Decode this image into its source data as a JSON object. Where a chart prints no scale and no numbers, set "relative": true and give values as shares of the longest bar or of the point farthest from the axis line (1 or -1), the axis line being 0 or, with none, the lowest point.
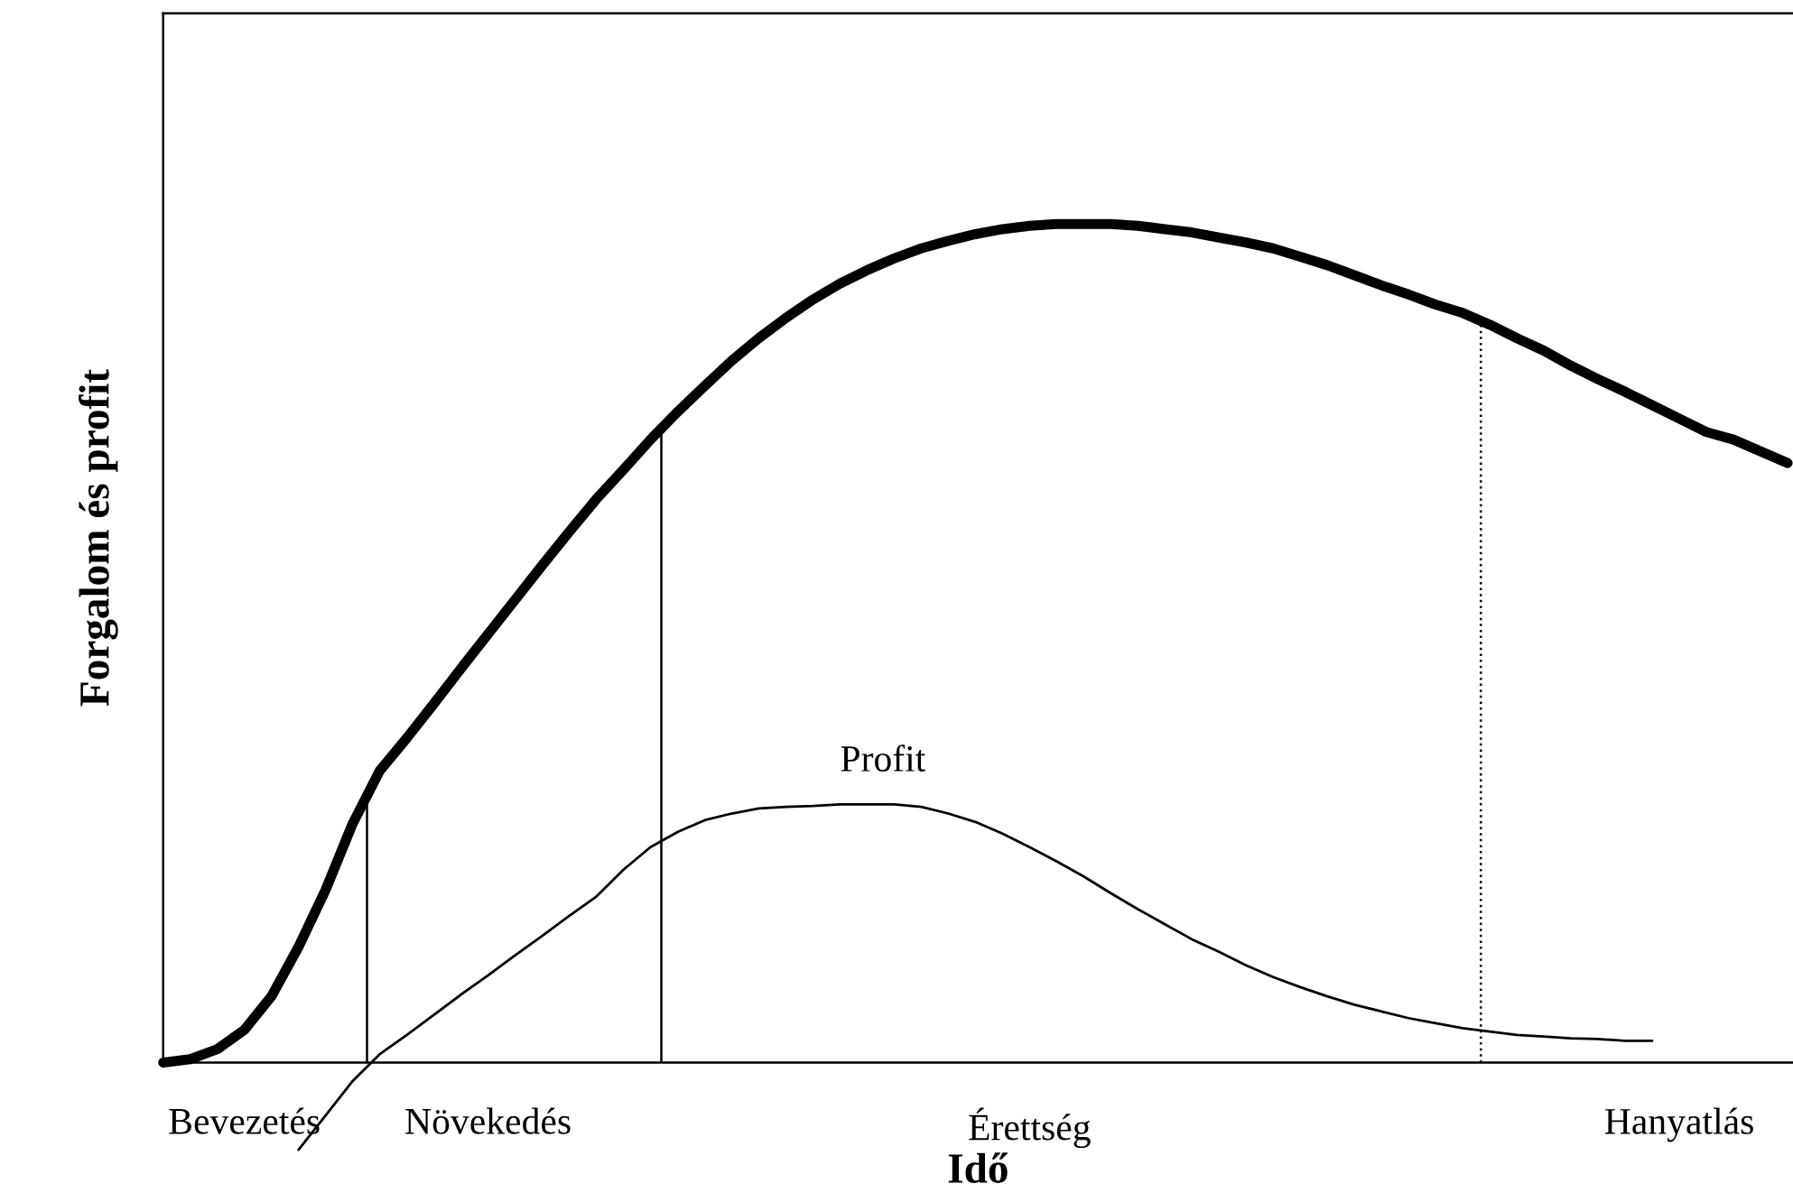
{
  "chart_data": {
    "type": "line",
    "relative": true,
    "xlabel": "Idő",
    "ylabel": "Forgalom és profit",
    "categories": [
      null,
      null,
      null,
      "Bevezetés",
      null,
      null,
      null,
      null,
      null,
      null,
      null,
      null,
      "Növekedés",
      null,
      null,
      null,
      null,
      null,
      null,
      null,
      null,
      null,
      null,
      null,
      null,
      null,
      null,
      null,
      null,
      null,
      null,
      null,
      "Érettség",
      null,
      null,
      null,
      null,
      null,
      null,
      null,
      null,
      null,
      null,
      null,
      null,
      null,
      null,
      null,
      null,
      null,
      null,
      null,
      null,
      null,
      null,
      null,
      "Hanyatlás",
      null,
      null,
      null,
      null
    ],
    "series": [
      {
        "color": "#000000",
        "values": [
          0,
          0.004,
          0.016,
          0.039,
          0.079,
          0.138,
          0.206,
          0.285,
          0.348,
          0.387,
          0.428,
          0.47,
          0.511,
          0.552,
          0.593,
          0.633,
          0.672,
          0.707,
          0.743,
          0.776,
          0.807,
          0.837,
          0.864,
          0.888,
          0.91,
          0.929,
          0.945,
          0.959,
          0.971,
          0.98,
          0.988,
          0.994,
          0.998,
          1,
          1,
          1,
          0.998,
          0.994,
          0.99,
          0.984,
          0.978,
          0.971,
          0.961,
          0.951,
          0.939,
          0.927,
          0.916,
          0.904,
          0.894,
          0.88,
          0.864,
          0.849,
          0.831,
          0.815,
          0.8,
          0.784,
          0.768,
          0.752,
          0.743,
          0.729,
          0.715
        ]
      },
      {
        "color": "#000000",
        "values": [
          null,
          null,
          null,
          null,
          null,
          -0.104,
          -0.063,
          -0.022,
          0.01,
          0.033,
          0.057,
          0.081,
          0.104,
          0.128,
          0.151,
          0.175,
          0.198,
          0.23,
          0.257,
          0.275,
          0.289,
          0.297,
          0.303,
          0.305,
          0.306,
          0.308,
          0.308,
          0.308,
          0.305,
          0.297,
          0.287,
          0.273,
          0.257,
          0.24,
          0.222,
          0.202,
          0.183,
          0.165,
          0.147,
          0.132,
          0.116,
          0.102,
          0.09,
          0.079,
          0.069,
          0.061,
          0.053,
          0.047,
          0.041,
          0.037,
          0.033,
          0.031,
          0.029,
          0.028,
          0.026,
          0.026,
          null,
          null,
          null,
          null,
          null
        ]
      }
    ],
    "annotations": [
      "Profit"
    ],
    "legend": false,
    "marker": "none",
    "line_style": "solid",
    "grid": false
  }
}
